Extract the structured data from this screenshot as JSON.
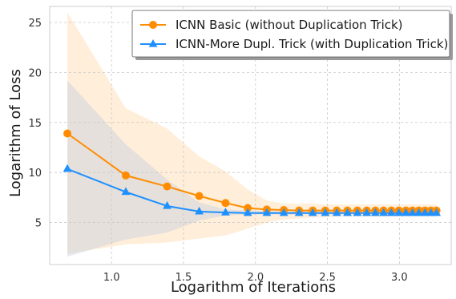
{
  "chart_data": {
    "type": "line",
    "title": "",
    "xlabel": "Logarithm of Iterations",
    "ylabel": "Logarithm of Loss",
    "xlim": [
      0.57,
      3.36
    ],
    "ylim": [
      0.8,
      26.6
    ],
    "xticks": [
      1.0,
      1.5,
      2.0,
      2.5,
      3.0
    ],
    "yticks": [
      5,
      10,
      15,
      20,
      25
    ],
    "xtick_labels": [
      "1.0",
      "1.5",
      "2.0",
      "2.5",
      "3.0"
    ],
    "ytick_labels": [
      "5",
      "10",
      "15",
      "20",
      "25"
    ],
    "grid": true,
    "grid_style": "dashed",
    "legend_position": "top-right",
    "x": [
      0.693,
      1.099,
      1.386,
      1.609,
      1.792,
      1.946,
      2.079,
      2.197,
      2.303,
      2.398,
      2.485,
      2.565,
      2.639,
      2.708,
      2.773,
      2.833,
      2.89,
      2.944,
      2.996,
      3.045,
      3.091,
      3.135,
      3.178,
      3.219,
      3.258
    ],
    "series": [
      {
        "name": "ICNN Basic (without Duplication Trick)",
        "color": "#ff8c00",
        "marker": "circle",
        "values": [
          13.9,
          9.7,
          8.6,
          7.65,
          6.95,
          6.45,
          6.3,
          6.25,
          6.2,
          6.2,
          6.2,
          6.2,
          6.2,
          6.2,
          6.2,
          6.2,
          6.2,
          6.2,
          6.2,
          6.2,
          6.2,
          6.2,
          6.2,
          6.2,
          6.2
        ],
        "band_upper": [
          26.0,
          16.4,
          14.4,
          11.6,
          10.1,
          8.3,
          7.2,
          6.9,
          6.9,
          6.9,
          6.8,
          6.8,
          6.8,
          6.8,
          6.8,
          6.8,
          6.8,
          6.8,
          6.8,
          6.8,
          6.8,
          6.8,
          6.8,
          6.8,
          6.8
        ],
        "band_lower": [
          1.9,
          2.8,
          3.0,
          3.4,
          3.7,
          4.4,
          5.0,
          5.3,
          5.4,
          5.5,
          5.5,
          5.6,
          5.6,
          5.6,
          5.6,
          5.6,
          5.6,
          5.6,
          5.6,
          5.6,
          5.6,
          5.6,
          5.6,
          5.6,
          5.6
        ],
        "band_color": "#ffe3bf"
      },
      {
        "name": "ICNN-More Dupl. Trick (with Duplication Trick)",
        "color": "#1e90ff",
        "marker": "triangle",
        "values": [
          10.35,
          8.05,
          6.65,
          6.1,
          6.0,
          5.95,
          5.95,
          5.95,
          5.95,
          5.95,
          5.95,
          5.95,
          5.95,
          5.95,
          5.95,
          5.95,
          5.95,
          5.95,
          5.95,
          5.95,
          5.95,
          5.95,
          5.95,
          5.95,
          5.95
        ],
        "band_upper": [
          19.2,
          12.8,
          9.3,
          7.0,
          6.3,
          6.2,
          6.15,
          6.1,
          6.1,
          6.1,
          6.1,
          6.1,
          6.1,
          6.1,
          6.1,
          6.1,
          6.1,
          6.1,
          6.1,
          6.1,
          6.1,
          6.1,
          6.1,
          6.1,
          6.1
        ],
        "band_lower": [
          1.6,
          3.3,
          4.0,
          5.2,
          5.7,
          5.8,
          5.8,
          5.8,
          5.8,
          5.8,
          5.8,
          5.8,
          5.8,
          5.8,
          5.8,
          5.8,
          5.8,
          5.8,
          5.8,
          5.8,
          5.8,
          5.8,
          5.8,
          5.8,
          5.8
        ],
        "band_color": "#cfd6dd"
      }
    ]
  }
}
